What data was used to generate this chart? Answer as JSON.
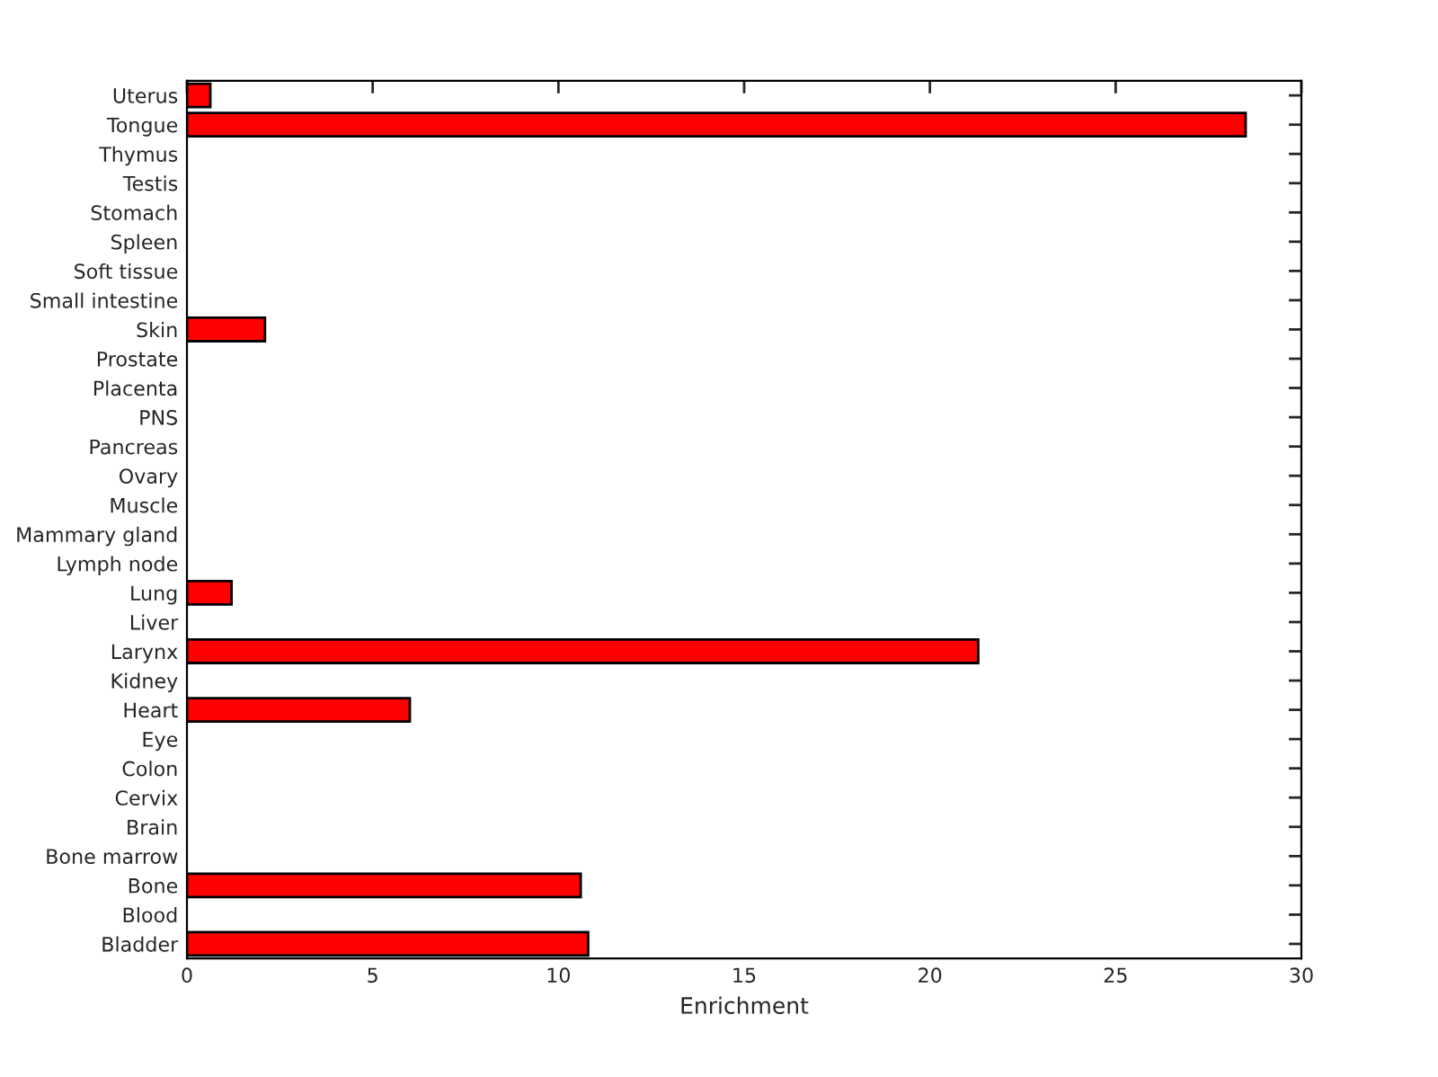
{
  "chart_data": {
    "type": "bar",
    "orientation": "horizontal",
    "xlabel": "Enrichment",
    "categories": [
      "Uterus",
      "Tongue",
      "Thymus",
      "Testis",
      "Stomach",
      "Spleen",
      "Soft tissue",
      "Small intestine",
      "Skin",
      "Prostate",
      "Placenta",
      "PNS",
      "Pancreas",
      "Ovary",
      "Muscle",
      "Mammary gland",
      "Lymph node",
      "Lung",
      "Liver",
      "Larynx",
      "Kidney",
      "Heart",
      "Eye",
      "Colon",
      "Cervix",
      "Brain",
      "Bone marrow",
      "Bone",
      "Blood",
      "Bladder"
    ],
    "values": [
      0.63,
      28.5,
      null,
      null,
      null,
      null,
      null,
      null,
      2.1,
      null,
      null,
      null,
      null,
      null,
      null,
      null,
      null,
      1.2,
      null,
      21.3,
      null,
      6.0,
      null,
      null,
      null,
      null,
      null,
      10.6,
      null,
      10.8
    ],
    "color": "#ff0000",
    "xlim": [
      0,
      30
    ],
    "xticks": [
      0,
      5,
      10,
      15,
      20,
      25,
      30
    ],
    "grid": false,
    "legend": false
  }
}
